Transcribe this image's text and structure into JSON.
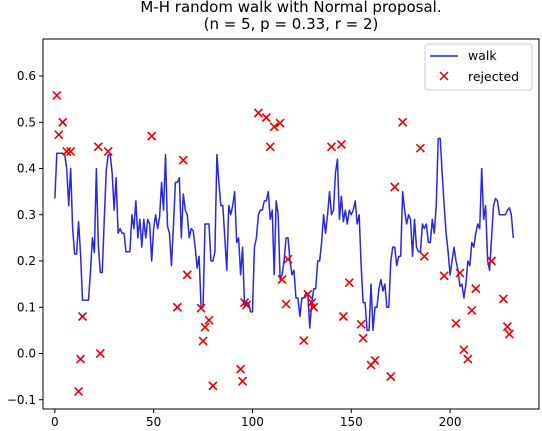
{
  "chart_data": {
    "type": "line",
    "title": "M-H random walk with Normal proposal.",
    "subtitle": "(n = 5, p = 0.33, r = 2)",
    "xlabel": "",
    "ylabel": "",
    "xlim": [
      -6,
      245
    ],
    "ylim": [
      -0.12,
      0.68
    ],
    "x_ticks": [
      0,
      50,
      100,
      150,
      200
    ],
    "x_tick_labels": [
      "0",
      "50",
      "100",
      "150",
      "200"
    ],
    "y_ticks": [
      -0.1,
      0.0,
      0.1,
      0.2,
      0.3,
      0.4,
      0.5,
      0.6
    ],
    "y_tick_labels": [
      "−0.1",
      "0.0",
      "0.1",
      "0.2",
      "0.3",
      "0.4",
      "0.5",
      "0.6"
    ],
    "grid": false,
    "legend_position": "top-right",
    "series": [
      {
        "name": "walk",
        "kind": "line",
        "color": "#2727e6",
        "points": [
          [
            0,
            0.335
          ],
          [
            1,
            0.433
          ],
          [
            3,
            0.433
          ],
          [
            4,
            0.433
          ],
          [
            5,
            0.43
          ],
          [
            6,
            0.4
          ],
          [
            7,
            0.32
          ],
          [
            8,
            0.4
          ],
          [
            9,
            0.27
          ],
          [
            10,
            0.215
          ],
          [
            11,
            0.215
          ],
          [
            12,
            0.285
          ],
          [
            13,
            0.215
          ],
          [
            14,
            0.115
          ],
          [
            15,
            0.115
          ],
          [
            16,
            0.115
          ],
          [
            17,
            0.115
          ],
          [
            18,
            0.175
          ],
          [
            19,
            0.25
          ],
          [
            20,
            0.218
          ],
          [
            21,
            0.4
          ],
          [
            22,
            0.235
          ],
          [
            23,
            0.175
          ],
          [
            24,
            0.175
          ],
          [
            25,
            0.29
          ],
          [
            26,
            0.395
          ],
          [
            27,
            0.43
          ],
          [
            28,
            0.43
          ],
          [
            29,
            0.39
          ],
          [
            30,
            0.31
          ],
          [
            31,
            0.38
          ],
          [
            32,
            0.26
          ],
          [
            33,
            0.27
          ],
          [
            34,
            0.26
          ],
          [
            35,
            0.26
          ],
          [
            36,
            0.22
          ],
          [
            37,
            0.22
          ],
          [
            38,
            0.22
          ],
          [
            39,
            0.3
          ],
          [
            40,
            0.27
          ],
          [
            41,
            0.33
          ],
          [
            42,
            0.25
          ],
          [
            43,
            0.29
          ],
          [
            44,
            0.23
          ],
          [
            45,
            0.29
          ],
          [
            46,
            0.25
          ],
          [
            47,
            0.29
          ],
          [
            48,
            0.28
          ],
          [
            49,
            0.2
          ],
          [
            50,
            0.27
          ],
          [
            51,
            0.3
          ],
          [
            52,
            0.27
          ],
          [
            53,
            0.295
          ],
          [
            54,
            0.37
          ],
          [
            55,
            0.31
          ],
          [
            56,
            0.43
          ],
          [
            57,
            0.275
          ],
          [
            58,
            0.26
          ],
          [
            59,
            0.19
          ],
          [
            60,
            0.275
          ],
          [
            61,
            0.37
          ],
          [
            62,
            0.37
          ],
          [
            63,
            0.38
          ],
          [
            64,
            0.25
          ],
          [
            65,
            0.345
          ],
          [
            66,
            0.31
          ],
          [
            67,
            0.3
          ],
          [
            68,
            0.25
          ],
          [
            69,
            0.27
          ],
          [
            70,
            0.265
          ],
          [
            71,
            0.23
          ],
          [
            72,
            0.185
          ],
          [
            73,
            0.21
          ],
          [
            74,
            0.1
          ],
          [
            75,
            0.1
          ],
          [
            76,
            0.28
          ],
          [
            77,
            0.28
          ],
          [
            78,
            0.28
          ],
          [
            79,
            0.2
          ],
          [
            80,
            0.2
          ],
          [
            81,
            0.22
          ],
          [
            82,
            0.43
          ],
          [
            83,
            0.37
          ],
          [
            84,
            0.32
          ],
          [
            85,
            0.32
          ],
          [
            86,
            0.25
          ],
          [
            87,
            0.18
          ],
          [
            88,
            0.32
          ],
          [
            89,
            0.3
          ],
          [
            90,
            0.32
          ],
          [
            91,
            0.35
          ],
          [
            92,
            0.24
          ],
          [
            93,
            0.25
          ],
          [
            94,
            0.17
          ],
          [
            95,
            0.23
          ],
          [
            96,
            0.1
          ],
          [
            97,
            0.11
          ],
          [
            98,
            0.11
          ],
          [
            99,
            0.09
          ],
          [
            100,
            0.09
          ],
          [
            101,
            0.23
          ],
          [
            102,
            0.25
          ],
          [
            103,
            0.3
          ],
          [
            104,
            0.31
          ],
          [
            105,
            0.31
          ],
          [
            106,
            0.33
          ],
          [
            107,
            0.33
          ],
          [
            108,
            0.35
          ],
          [
            109,
            0.29
          ],
          [
            110,
            0.31
          ],
          [
            111,
            0.17
          ],
          [
            112,
            0.33
          ],
          [
            113,
            0.3
          ],
          [
            114,
            0.16
          ],
          [
            115,
            0.17
          ],
          [
            116,
            0.2
          ],
          [
            117,
            0.25
          ],
          [
            118,
            0.25
          ],
          [
            119,
            0.2
          ],
          [
            120,
            0.17
          ],
          [
            121,
            0.18
          ],
          [
            122,
            0.12
          ],
          [
            123,
            0.12
          ],
          [
            124,
            0.08
          ],
          [
            125,
            0.12
          ],
          [
            126,
            0.12
          ],
          [
            127,
            0.13
          ],
          [
            128,
            0.13
          ],
          [
            129,
            0.055
          ],
          [
            130,
            0.11
          ],
          [
            131,
            0.14
          ],
          [
            132,
            0.14
          ],
          [
            133,
            0.2
          ],
          [
            134,
            0.2
          ],
          [
            135,
            0.24
          ],
          [
            136,
            0.3
          ],
          [
            137,
            0.26
          ],
          [
            138,
            0.3
          ],
          [
            139,
            0.35
          ],
          [
            140,
            0.3
          ],
          [
            141,
            0.31
          ],
          [
            142,
            0.39
          ],
          [
            143,
            0.42
          ],
          [
            144,
            0.29
          ],
          [
            145,
            0.34
          ],
          [
            146,
            0.285
          ],
          [
            147,
            0.31
          ],
          [
            148,
            0.28
          ],
          [
            149,
            0.31
          ],
          [
            150,
            0.3
          ],
          [
            151,
            0.31
          ],
          [
            152,
            0.33
          ],
          [
            153,
            0.28
          ],
          [
            154,
            0.3
          ],
          [
            155,
            0.19
          ],
          [
            156,
            0.11
          ],
          [
            157,
            0.11
          ],
          [
            158,
            0.05
          ],
          [
            159,
            0.05
          ],
          [
            160,
            0.15
          ],
          [
            161,
            0.05
          ],
          [
            162,
            0.1
          ],
          [
            163,
            0.1
          ],
          [
            164,
            0.14
          ],
          [
            165,
            0.16
          ],
          [
            166,
            0.135
          ],
          [
            167,
            0.15
          ],
          [
            168,
            0.1
          ],
          [
            169,
            0.1
          ],
          [
            170,
            0.2
          ],
          [
            171,
            0.23
          ],
          [
            172,
            0.23
          ],
          [
            173,
            0.19
          ],
          [
            174,
            0.21
          ],
          [
            175,
            0.21
          ],
          [
            176,
            0.35
          ],
          [
            177,
            0.31
          ],
          [
            178,
            0.28
          ],
          [
            179,
            0.3
          ],
          [
            180,
            0.29
          ],
          [
            181,
            0.21
          ],
          [
            182,
            0.29
          ],
          [
            183,
            0.23
          ],
          [
            184,
            0.22
          ],
          [
            185,
            0.22
          ],
          [
            186,
            0.28
          ],
          [
            187,
            0.27
          ],
          [
            188,
            0.28
          ],
          [
            189,
            0.24
          ],
          [
            190,
            0.24
          ],
          [
            191,
            0.29
          ],
          [
            192,
            0.26
          ],
          [
            193,
            0.32
          ],
          [
            194,
            0.465
          ],
          [
            195,
            0.465
          ],
          [
            196,
            0.39
          ],
          [
            197,
            0.32
          ],
          [
            198,
            0.26
          ],
          [
            199,
            0.22
          ],
          [
            200,
            0.17
          ],
          [
            201,
            0.2
          ],
          [
            202,
            0.23
          ],
          [
            203,
            0.2
          ],
          [
            204,
            0.18
          ],
          [
            205,
            0.145
          ],
          [
            206,
            0.15
          ],
          [
            207,
            0.12
          ],
          [
            208,
            0.15
          ],
          [
            209,
            0.2
          ],
          [
            210,
            0.19
          ],
          [
            211,
            0.24
          ],
          [
            212,
            0.23
          ],
          [
            213,
            0.26
          ],
          [
            214,
            0.28
          ],
          [
            215,
            0.27
          ],
          [
            216,
            0.4
          ],
          [
            217,
            0.29
          ],
          [
            218,
            0.32
          ],
          [
            219,
            0.2
          ],
          [
            220,
            0.18
          ],
          [
            221,
            0.25
          ],
          [
            222,
            0.32
          ],
          [
            223,
            0.335
          ],
          [
            224,
            0.33
          ],
          [
            225,
            0.3
          ],
          [
            226,
            0.3
          ],
          [
            227,
            0.3
          ],
          [
            228,
            0.3
          ],
          [
            229,
            0.31
          ],
          [
            230,
            0.315
          ],
          [
            231,
            0.3
          ],
          [
            232,
            0.25
          ]
        ]
      },
      {
        "name": "rejected",
        "kind": "scatter",
        "marker": "x",
        "color": "#e60000",
        "points": [
          [
            1,
            0.558
          ],
          [
            2,
            0.473
          ],
          [
            4,
            0.5
          ],
          [
            6,
            0.437
          ],
          [
            8,
            0.437
          ],
          [
            12,
            -0.082
          ],
          [
            13,
            -0.012
          ],
          [
            14,
            0.08
          ],
          [
            22,
            0.447
          ],
          [
            23,
            0.0
          ],
          [
            27,
            0.437
          ],
          [
            49,
            0.47
          ],
          [
            62,
            0.1
          ],
          [
            65,
            0.418
          ],
          [
            67,
            0.17
          ],
          [
            74,
            0.098
          ],
          [
            75,
            0.027
          ],
          [
            76,
            0.057
          ],
          [
            78,
            0.072
          ],
          [
            80,
            -0.07
          ],
          [
            94,
            -0.034
          ],
          [
            95,
            -0.06
          ],
          [
            96,
            0.11
          ],
          [
            97,
            0.105
          ],
          [
            103,
            0.52
          ],
          [
            107,
            0.51
          ],
          [
            109,
            0.447
          ],
          [
            111,
            0.49
          ],
          [
            114,
            0.498
          ],
          [
            115,
            0.16
          ],
          [
            117,
            0.107
          ],
          [
            118,
            0.204
          ],
          [
            126,
            0.028
          ],
          [
            128,
            0.128
          ],
          [
            130,
            0.11
          ],
          [
            131,
            0.1
          ],
          [
            140,
            0.447
          ],
          [
            145,
            0.452
          ],
          [
            146,
            0.08
          ],
          [
            149,
            0.153
          ],
          [
            155,
            0.063
          ],
          [
            156,
            0.033
          ],
          [
            160,
            -0.025
          ],
          [
            162,
            -0.015
          ],
          [
            170,
            -0.05
          ],
          [
            172,
            0.36
          ],
          [
            176,
            0.5
          ],
          [
            185,
            0.444
          ],
          [
            187,
            0.21
          ],
          [
            197,
            0.168
          ],
          [
            203,
            0.065
          ],
          [
            205,
            0.174
          ],
          [
            207,
            0.008
          ],
          [
            209,
            -0.012
          ],
          [
            211,
            0.093
          ],
          [
            213,
            0.14
          ],
          [
            221,
            0.2
          ],
          [
            227,
            0.118
          ],
          [
            229,
            0.058
          ],
          [
            230,
            0.042
          ]
        ]
      }
    ]
  }
}
